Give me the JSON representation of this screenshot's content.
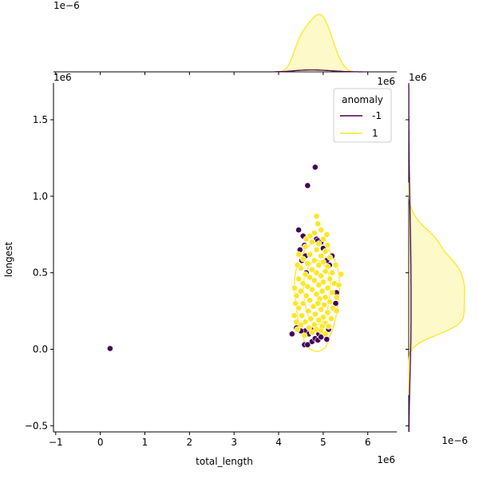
{
  "chart_data": {
    "type": "scatter",
    "title": "",
    "xlabel": "total_length",
    "ylabel": "longest",
    "x_offset_text": "1e6",
    "y_offset_text": "1e6",
    "xlim": [
      -1.05,
      6.65
    ],
    "ylim": [
      -0.54,
      1.74
    ],
    "xticks": [
      -1,
      0,
      1,
      2,
      3,
      4,
      5,
      6
    ],
    "yticks": [
      -0.5,
      0.0,
      0.5,
      1.0,
      1.5
    ],
    "ytick_labels": [
      "−0.5",
      "0.0",
      "0.5",
      "1.0",
      "1.5"
    ],
    "xtick_labels": [
      "−1",
      "0",
      "1",
      "2",
      "3",
      "4",
      "5",
      "6"
    ],
    "grid": false,
    "legend": {
      "title": "anomaly",
      "placement": "top-right",
      "entries": [
        {
          "label": "-1",
          "color": "#440154"
        },
        {
          "label": "1",
          "color": "#fde725"
        }
      ]
    },
    "marginals": {
      "top_offset_text": "1e−6",
      "top_right_offset_text": "1e6",
      "right_top_offset_text": "1e6",
      "right_offset_text": "1e−6"
    },
    "series": [
      {
        "name": "-1",
        "color": "#440154",
        "points": [
          [
            0.22,
            0.005
          ],
          [
            4.82,
            1.19
          ],
          [
            4.65,
            1.07
          ],
          [
            4.85,
            0.72
          ],
          [
            4.88,
            0.71
          ],
          [
            4.45,
            0.78
          ],
          [
            4.55,
            0.74
          ],
          [
            4.58,
            0.68
          ],
          [
            4.95,
            0.7
          ],
          [
            4.48,
            0.65
          ],
          [
            4.6,
            0.61
          ],
          [
            5.0,
            0.66
          ],
          [
            5.2,
            0.61
          ],
          [
            5.08,
            0.58
          ],
          [
            5.14,
            0.55
          ],
          [
            4.52,
            0.58
          ],
          [
            4.62,
            0.5
          ],
          [
            5.3,
            0.37
          ],
          [
            5.28,
            0.3
          ],
          [
            4.3,
            0.1
          ],
          [
            4.6,
            0.12
          ],
          [
            4.68,
            0.1
          ],
          [
            4.9,
            0.1
          ],
          [
            5.12,
            0.13
          ],
          [
            5.08,
            0.065
          ],
          [
            4.75,
            0.05
          ],
          [
            4.82,
            0.07
          ],
          [
            4.88,
            0.06
          ],
          [
            4.58,
            0.03
          ],
          [
            4.65,
            0.03
          ],
          [
            4.95,
            0.08
          ],
          [
            4.72,
            0.13
          ],
          [
            4.4,
            0.14
          ],
          [
            4.5,
            0.12
          ]
        ]
      },
      {
        "name": "1",
        "color": "#fde725",
        "points": [
          [
            4.85,
            0.87
          ],
          [
            4.95,
            0.78
          ],
          [
            4.8,
            0.76
          ],
          [
            4.7,
            0.74
          ],
          [
            5.0,
            0.72
          ],
          [
            4.9,
            0.69
          ],
          [
            4.75,
            0.7
          ],
          [
            5.1,
            0.68
          ],
          [
            4.6,
            0.67
          ],
          [
            5.05,
            0.64
          ],
          [
            4.85,
            0.65
          ],
          [
            4.7,
            0.62
          ],
          [
            4.45,
            0.62
          ],
          [
            4.95,
            0.61
          ],
          [
            5.15,
            0.6
          ],
          [
            4.55,
            0.59
          ],
          [
            4.8,
            0.58
          ],
          [
            5.0,
            0.57
          ],
          [
            4.65,
            0.56
          ],
          [
            4.9,
            0.55
          ],
          [
            5.1,
            0.54
          ],
          [
            4.5,
            0.53
          ],
          [
            4.75,
            0.52
          ],
          [
            5.05,
            0.51
          ],
          [
            4.85,
            0.5
          ],
          [
            4.6,
            0.49
          ],
          [
            5.2,
            0.5
          ],
          [
            4.95,
            0.48
          ],
          [
            5.4,
            0.49
          ],
          [
            4.7,
            0.47
          ],
          [
            5.15,
            0.46
          ],
          [
            4.45,
            0.46
          ],
          [
            4.8,
            0.45
          ],
          [
            5.0,
            0.44
          ],
          [
            4.55,
            0.43
          ],
          [
            4.9,
            0.42
          ],
          [
            5.25,
            0.43
          ],
          [
            4.65,
            0.41
          ],
          [
            5.1,
            0.4
          ],
          [
            4.75,
            0.39
          ],
          [
            4.98,
            0.38
          ],
          [
            4.5,
            0.38
          ],
          [
            5.2,
            0.37
          ],
          [
            4.85,
            0.36
          ],
          [
            4.62,
            0.35
          ],
          [
            5.05,
            0.34
          ],
          [
            4.4,
            0.35
          ],
          [
            4.92,
            0.33
          ],
          [
            5.3,
            0.34
          ],
          [
            4.7,
            0.32
          ],
          [
            5.15,
            0.31
          ],
          [
            4.55,
            0.3
          ],
          [
            4.88,
            0.3
          ],
          [
            5.02,
            0.29
          ],
          [
            4.78,
            0.28
          ],
          [
            4.45,
            0.27
          ],
          [
            5.22,
            0.27
          ],
          [
            4.95,
            0.26
          ],
          [
            4.66,
            0.25
          ],
          [
            5.1,
            0.24
          ],
          [
            4.82,
            0.23
          ],
          [
            4.52,
            0.22
          ],
          [
            5.0,
            0.21
          ],
          [
            4.72,
            0.2
          ],
          [
            5.18,
            0.2
          ],
          [
            4.9,
            0.19
          ],
          [
            4.6,
            0.18
          ],
          [
            4.4,
            0.18
          ],
          [
            5.05,
            0.17
          ],
          [
            4.8,
            0.16
          ],
          [
            4.5,
            0.16
          ],
          [
            4.98,
            0.15
          ],
          [
            4.68,
            0.14
          ],
          [
            4.85,
            0.13
          ],
          [
            5.12,
            0.15
          ],
          [
            4.42,
            0.13
          ],
          [
            4.75,
            0.11
          ],
          [
            4.95,
            0.12
          ],
          [
            4.58,
            0.09
          ],
          [
            5.05,
            0.1
          ],
          [
            4.35,
            0.22
          ],
          [
            4.38,
            0.3
          ],
          [
            4.36,
            0.4
          ],
          [
            4.42,
            0.55
          ],
          [
            5.35,
            0.42
          ],
          [
            5.28,
            0.55
          ],
          [
            5.3,
            0.25
          ],
          [
            4.88,
            0.82
          ],
          [
            4.62,
            0.72
          ],
          [
            5.08,
            0.75
          ]
        ]
      }
    ]
  }
}
